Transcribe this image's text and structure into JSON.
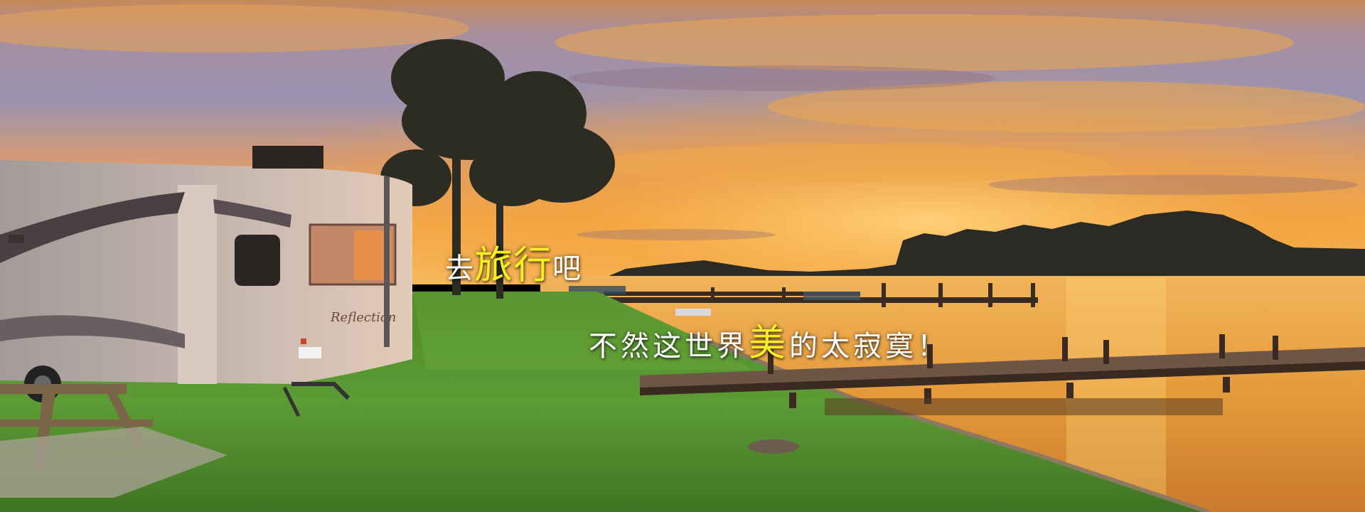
{
  "banner": {
    "headline": {
      "prefix": "去",
      "highlight": "旅行",
      "suffix": "吧"
    },
    "subline": {
      "prefix": "不然这世界",
      "highlight": "美",
      "suffix": "的太寂寞！"
    }
  },
  "rv": {
    "brand_text": "Reflection"
  },
  "colors": {
    "highlight": "#f7ef22",
    "caption": "#ffffff",
    "sky_top": "#7e8fb8",
    "sky_glow": "#f2a43a",
    "grass": "#5c9a33",
    "water": "#e8a03c"
  }
}
